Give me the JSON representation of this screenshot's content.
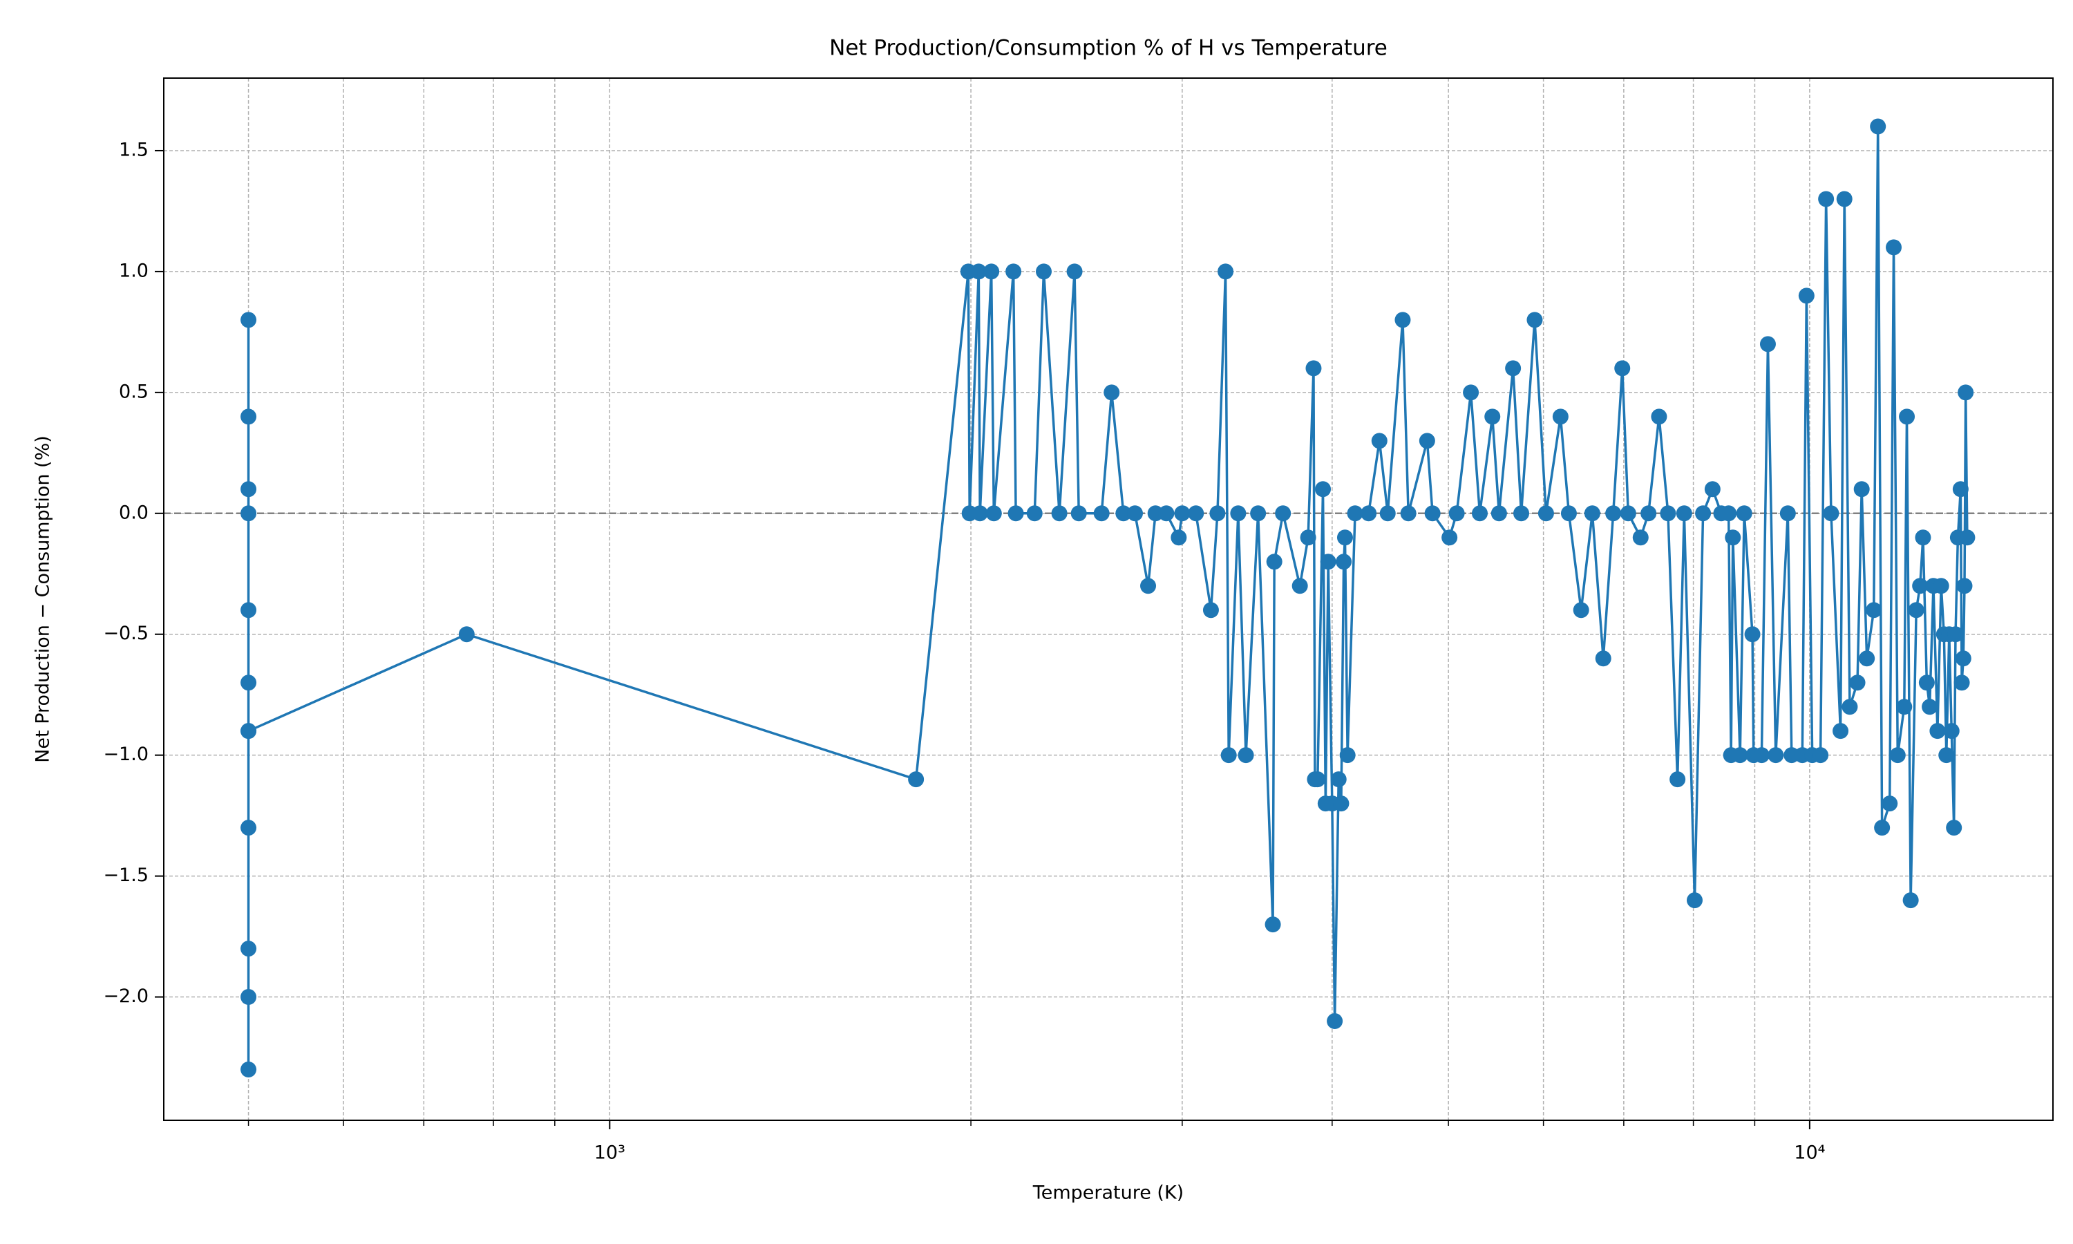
{
  "chart_data": {
    "type": "line",
    "title": "Net Production/Consumption % of H vs Temperature",
    "x_label": "Temperature (K)",
    "y_label": "Net Production − Consumption (%)",
    "color": "#1f77b4",
    "xscale": "log",
    "grid": true,
    "hline": 0,
    "xlim": [
      425,
      15950
    ],
    "ylim": [
      -2.51,
      1.8
    ],
    "xticks": [
      {
        "value": 1000,
        "label": "10³"
      },
      {
        "value": 10000,
        "label": "10⁴"
      }
    ],
    "xminor_ticks": [
      500,
      600,
      700,
      800,
      900,
      2000,
      3000,
      4000,
      5000,
      6000,
      7000,
      8000,
      9000
    ],
    "yticks": [
      {
        "value": -2.0,
        "label": "−2.0"
      },
      {
        "value": -1.5,
        "label": "−1.5"
      },
      {
        "value": -1.0,
        "label": "−1.0"
      },
      {
        "value": -0.5,
        "label": "−0.5"
      },
      {
        "value": 0,
        "label": "0.0"
      },
      0.5,
      {
        "value": 1.0,
        "label": "1.0"
      },
      1.5
    ],
    "x": [
      500,
      500,
      500,
      500,
      500,
      500,
      500,
      500,
      500,
      500,
      500,
      500,
      760,
      1800,
      1990,
      1995,
      2030,
      2035,
      2080,
      2090,
      2170,
      2180,
      2260,
      2300,
      2370,
      2440,
      2460,
      2570,
      2620,
      2680,
      2740,
      2810,
      2850,
      2910,
      2980,
      3000,
      3080,
      3170,
      3210,
      3260,
      3280,
      3340,
      3390,
      3470,
      3570,
      3580,
      3640,
      3760,
      3820,
      3860,
      3870,
      3890,
      3930,
      3950,
      3970,
      4000,
      4020,
      4050,
      4070,
      4090,
      4100,
      4120,
      4180,
      4290,
      4380,
      4450,
      4580,
      4630,
      4800,
      4850,
      5010,
      5080,
      5220,
      5310,
      5440,
      5510,
      5660,
      5750,
      5900,
      6030,
      6200,
      6300,
      6450,
      6590,
      6730,
      6860,
      6980,
      7060,
      7230,
      7340,
      7490,
      7620,
      7760,
      7860,
      8020,
      8150,
      8300,
      8440,
      8560,
      8600,
      8630,
      8750,
      8820,
      8960,
      8980,
      9120,
      9230,
      9370,
      9590,
      9660,
      9860,
      9940,
      10050,
      10210,
      10320,
      10420,
      10610,
      10690,
      10800,
      10960,
      11050,
      11160,
      11310,
      11400,
      11490,
      11660,
      11750,
      11840,
      11990,
      12050,
      12140,
      12270,
      12360,
      12430,
      12520,
      12590,
      12680,
      12780,
      12870,
      12940,
      13000,
      13070,
      13130,
      13190,
      13230,
      13290,
      13360,
      13390,
      13430,
      13460,
      13490,
      13530
    ],
    "values": [
      0.8,
      0.4,
      0.1,
      0.0,
      -0.4,
      -0.7,
      -0.9,
      -1.3,
      -1.8,
      -2.0,
      -2.3,
      -0.9,
      -0.5,
      -1.1,
      1.0,
      0,
      1.0,
      0,
      1.0,
      0,
      1.0,
      0,
      0,
      1.0,
      0,
      1.0,
      0,
      0,
      0.5,
      0,
      0,
      -0.3,
      0,
      0,
      -0.1,
      0,
      0,
      -0.4,
      0,
      1.0,
      -1.0,
      0,
      -1.0,
      0,
      -1.7,
      -0.2,
      0,
      -0.3,
      -0.1,
      0.6,
      -1.1,
      -1.1,
      0.1,
      -1.2,
      -0.2,
      -1.2,
      -2.1,
      -1.1,
      -1.2,
      -0.2,
      -0.1,
      -1.0,
      0,
      0,
      0.3,
      0,
      0.8,
      0,
      0.3,
      0,
      -0.1,
      0,
      0.5,
      0,
      0.4,
      0,
      0.6,
      0,
      0.8,
      0,
      0.4,
      0,
      -0.4,
      0,
      -0.6,
      0,
      0.6,
      0,
      -0.1,
      0,
      0.4,
      0,
      -1.1,
      0,
      -1.6,
      0,
      0.1,
      0,
      0,
      -1.0,
      -0.1,
      -1.0,
      0,
      -0.5,
      -1.0,
      -1.0,
      0.7,
      -1.0,
      0,
      -1.0,
      -1.0,
      0.9,
      -1.0,
      -1.0,
      1.3,
      0,
      -0.9,
      1.3,
      -0.8,
      -0.7,
      0.1,
      -0.6,
      -0.4,
      1.6,
      -1.3,
      -1.2,
      1.1,
      -1.0,
      -0.8,
      0.4,
      -1.6,
      -0.4,
      -0.3,
      -0.1,
      -0.7,
      -0.8,
      -0.3,
      -0.9,
      -0.3,
      -0.5,
      -1.0,
      -0.5,
      -0.9,
      -1.3,
      -0.5,
      -0.1,
      0.1,
      -0.7,
      -0.6,
      -0.3,
      0.5,
      -0.1
    ]
  }
}
